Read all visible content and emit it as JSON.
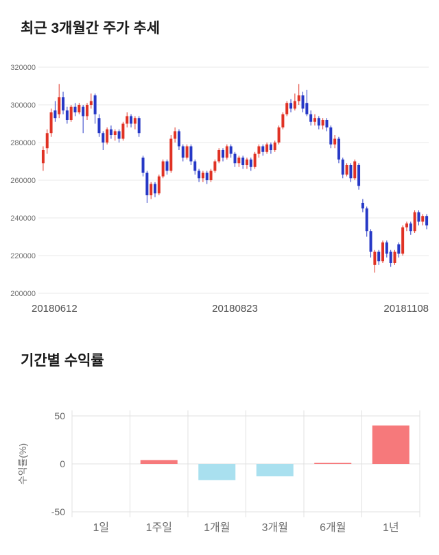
{
  "price_section": {
    "title": "최근 3개월간 주가 추세"
  },
  "returns_section": {
    "title": "기간별 수익률"
  },
  "chart_data": [
    {
      "type": "candlestick",
      "title": "최근 3개월간 주가 추세",
      "x_labels": [
        "20180612",
        "20180823",
        "20181108"
      ],
      "ylim": [
        200000,
        320000
      ],
      "yticks": [
        200000,
        220000,
        240000,
        260000,
        280000,
        300000,
        320000
      ],
      "grid": true,
      "colors": {
        "up": "#e03224",
        "down": "#2638c6",
        "grid": "#e8e8e8"
      },
      "candles_format": [
        "open",
        "high",
        "low",
        "close"
      ],
      "candles": [
        [
          269000,
          278000,
          265000,
          276000
        ],
        [
          277000,
          287000,
          274000,
          285000
        ],
        [
          285000,
          298000,
          283000,
          296000
        ],
        [
          297000,
          302000,
          291000,
          293000
        ],
        [
          295000,
          311000,
          293000,
          304000
        ],
        [
          304000,
          307000,
          295000,
          297000
        ],
        [
          297000,
          299000,
          290000,
          292000
        ],
        [
          292000,
          300000,
          291000,
          299000
        ],
        [
          299000,
          301000,
          294000,
          296000
        ],
        [
          296000,
          301000,
          295000,
          300000
        ],
        [
          299000,
          300000,
          285000,
          294000
        ],
        [
          294000,
          301000,
          292000,
          300000
        ],
        [
          300000,
          306000,
          298000,
          302000
        ],
        [
          305000,
          306000,
          290000,
          295000
        ],
        [
          293000,
          295000,
          283000,
          285000
        ],
        [
          285000,
          286000,
          276000,
          280000
        ],
        [
          280000,
          288000,
          279000,
          287000
        ],
        [
          287000,
          289000,
          282000,
          284000
        ],
        [
          284000,
          287000,
          281000,
          286000
        ],
        [
          286000,
          287000,
          280000,
          282000
        ],
        [
          282000,
          291000,
          281000,
          290000
        ],
        [
          290000,
          296000,
          288000,
          294000
        ],
        [
          294000,
          295000,
          288000,
          290000
        ],
        [
          290000,
          294000,
          287000,
          293000
        ],
        [
          293000,
          294000,
          283000,
          285000
        ],
        [
          272000,
          273000,
          262000,
          264000
        ],
        [
          264000,
          265000,
          248000,
          252000
        ],
        [
          252000,
          259000,
          250000,
          258000
        ],
        [
          258000,
          259000,
          251000,
          253000
        ],
        [
          253000,
          263000,
          252000,
          262000
        ],
        [
          262000,
          271000,
          261000,
          270000
        ],
        [
          270000,
          271000,
          263000,
          265000
        ],
        [
          265000,
          284000,
          264000,
          282000
        ],
        [
          282000,
          288000,
          280000,
          286000
        ],
        [
          286000,
          287000,
          276000,
          278000
        ],
        [
          278000,
          279000,
          270000,
          272000
        ],
        [
          272000,
          279000,
          271000,
          278000
        ],
        [
          278000,
          279000,
          268000,
          270000
        ],
        [
          270000,
          271000,
          263000,
          265000
        ],
        [
          265000,
          266000,
          259000,
          261000
        ],
        [
          261000,
          265000,
          259000,
          264000
        ],
        [
          264000,
          265000,
          258000,
          260000
        ],
        [
          260000,
          266000,
          259000,
          265000
        ],
        [
          265000,
          271000,
          264000,
          270000
        ],
        [
          270000,
          277000,
          269000,
          276000
        ],
        [
          276000,
          277000,
          270000,
          272000
        ],
        [
          272000,
          279000,
          271000,
          278000
        ],
        [
          278000,
          279000,
          272000,
          274000
        ],
        [
          274000,
          275000,
          267000,
          269000
        ],
        [
          269000,
          273000,
          267000,
          272000
        ],
        [
          272000,
          273000,
          266000,
          268000
        ],
        [
          268000,
          272000,
          266000,
          271000
        ],
        [
          271000,
          272000,
          265000,
          267000
        ],
        [
          267000,
          275000,
          266000,
          274000
        ],
        [
          274000,
          279000,
          272000,
          278000
        ],
        [
          278000,
          279000,
          273000,
          275000
        ],
        [
          275000,
          280000,
          274000,
          279000
        ],
        [
          279000,
          280000,
          274000,
          276000
        ],
        [
          276000,
          281000,
          275000,
          280000
        ],
        [
          280000,
          289000,
          279000,
          288000
        ],
        [
          288000,
          296000,
          287000,
          295000
        ],
        [
          295000,
          302000,
          294000,
          301000
        ],
        [
          301000,
          303000,
          296000,
          298000
        ],
        [
          298000,
          306000,
          297000,
          302000
        ],
        [
          302000,
          311000,
          300000,
          305000
        ],
        [
          305000,
          307000,
          296000,
          298000
        ],
        [
          301000,
          308000,
          294000,
          295000
        ],
        [
          295000,
          297000,
          289000,
          291000
        ],
        [
          291000,
          295000,
          289000,
          293000
        ],
        [
          293000,
          294000,
          287000,
          289000
        ],
        [
          289000,
          293000,
          287000,
          292000
        ],
        [
          292000,
          293000,
          286000,
          288000
        ],
        [
          288000,
          289000,
          277000,
          279000
        ],
        [
          279000,
          284000,
          277000,
          282000
        ],
        [
          282000,
          283000,
          269000,
          271000
        ],
        [
          271000,
          272000,
          261000,
          263000
        ],
        [
          263000,
          269000,
          262000,
          268000
        ],
        [
          268000,
          269000,
          259000,
          261000
        ],
        [
          261000,
          271000,
          260000,
          270000
        ],
        [
          268000,
          269000,
          255000,
          257000
        ],
        [
          248000,
          250000,
          243000,
          245000
        ],
        [
          245000,
          246000,
          230000,
          233000
        ],
        [
          233000,
          234000,
          219000,
          222000
        ],
        [
          215000,
          223000,
          211000,
          222000
        ],
        [
          222000,
          223000,
          215000,
          217000
        ],
        [
          217000,
          228000,
          216000,
          227000
        ],
        [
          227000,
          228000,
          219000,
          221000
        ],
        [
          222000,
          223000,
          214000,
          216000
        ],
        [
          216000,
          223000,
          215000,
          222000
        ],
        [
          226000,
          227000,
          219000,
          221000
        ],
        [
          221000,
          236000,
          220000,
          235000
        ],
        [
          235000,
          238000,
          233000,
          237000
        ],
        [
          237000,
          238000,
          231000,
          233000
        ],
        [
          233000,
          244000,
          232000,
          243000
        ],
        [
          243000,
          244000,
          236000,
          238000
        ],
        [
          238000,
          242000,
          236000,
          241000
        ],
        [
          241000,
          242000,
          234000,
          236000
        ]
      ]
    },
    {
      "type": "bar",
      "title": "기간별 수익률",
      "categories": [
        "1일",
        "1주일",
        "1개월",
        "3개월",
        "6개월",
        "1년"
      ],
      "values": [
        0,
        4,
        -17,
        -13,
        1,
        40
      ],
      "ylabel": "수익률(%)",
      "ylim": [
        -50,
        50
      ],
      "yticks": [
        50,
        0,
        -50
      ],
      "grid": true,
      "legend": "none",
      "colors": {
        "positive": "#f6797b",
        "negative": "#a9e0ef",
        "grid": "#e0e0e0"
      }
    }
  ]
}
